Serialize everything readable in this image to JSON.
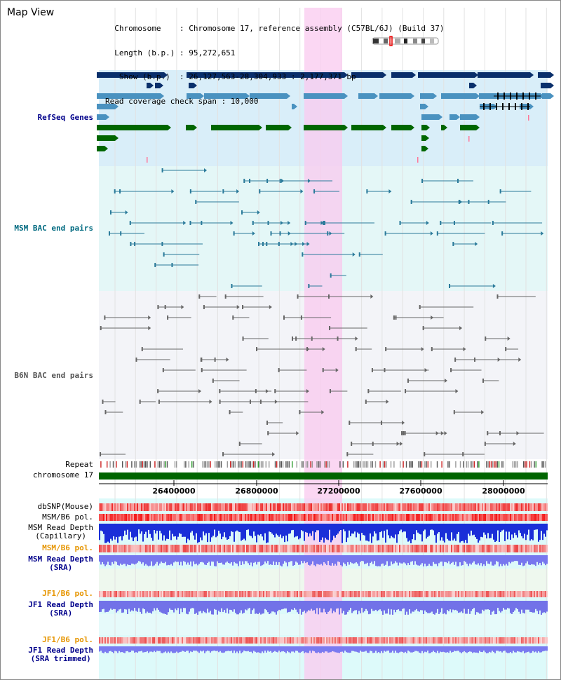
{
  "view": {
    "title": "Map View",
    "info_lines": [
      "  Chromosome    : Chromosome 17, reference assembly (C57BL/6J) (Build 37)",
      "  Length (b.p.) : 95,272,651",
      "   Show (b.p.)  : 26,127,563-28,304,933 : 2,177,371 bp",
      "Read coverage check span : 10,000"
    ]
  },
  "tracks": {
    "refseq_label": "RefSeq Genes",
    "msm_bac_label": "MSM BAC end pairs",
    "b6n_bac_label": "B6N BAC end pairs",
    "repeat_label": "Repeat",
    "chromosome_label": "chromosome 17",
    "dbsnp_label": "dbSNP(Mouse)",
    "msm_b6_pol_label": "MSM/B6 pol.",
    "msm_read_depth_cap_line1": "MSM Read Depth",
    "msm_read_depth_cap_line2": "(Capillary)",
    "msm_b6_pol2_label": "MSM/B6 pol.",
    "msm_read_depth_sra_line1": "MSM Read Depth",
    "msm_read_depth_sra_line2": "(SRA)",
    "jf1_b6_pol_label": "JF1/B6 pol.",
    "jf1_read_depth_sra_line1": "JF1 Read Depth",
    "jf1_read_depth_sra_line2": "(SRA)",
    "jf1_b6_pol2_label": "JF1/B6 pol.",
    "jf1_read_depth_trim_line1": "JF1 Read Depth",
    "jf1_read_depth_trim_line2": "(SRA trimmed)"
  },
  "axis": {
    "ticks": [
      "26400000",
      "26800000",
      "27200000",
      "27600000",
      "28000000"
    ]
  },
  "colors": {
    "navy": "#0a2f6b",
    "steel": "#4a92c0",
    "green": "#006600",
    "teal_line": "#2a7a9a",
    "gray_line": "#666666",
    "highlight": "#f9c9ef",
    "refseq_bg": "#d9eef9",
    "msm_bg": "#e4f7f7",
    "b6n_bg": "#f3f4f8",
    "track_bg": "#ddfafa",
    "label_navy": "#00008b",
    "label_orange": "#e69500",
    "label_teal": "#006a80",
    "label_gray": "#555555"
  }
}
